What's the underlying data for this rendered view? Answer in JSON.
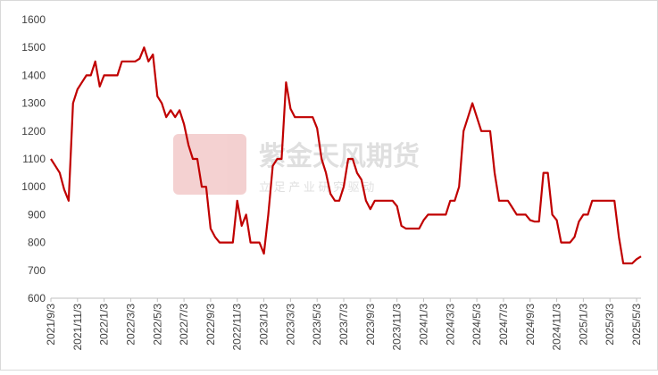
{
  "chart_data": {
    "type": "line",
    "watermark": {
      "name": "紫金天风期货",
      "slogan": "立 足 产 业 研 究 驱 动"
    },
    "categories": [
      "2021/9/3",
      null,
      null,
      null,
      null,
      null,
      "2021/11/3",
      null,
      null,
      null,
      null,
      null,
      "2022/1/3",
      null,
      null,
      null,
      null,
      null,
      "2022/3/3",
      null,
      null,
      null,
      null,
      null,
      "2022/5/3",
      null,
      null,
      null,
      null,
      null,
      "2022/7/3",
      null,
      null,
      null,
      null,
      null,
      "2022/9/3",
      null,
      null,
      null,
      null,
      null,
      "2022/11/3",
      null,
      null,
      null,
      null,
      null,
      "2023/1/3",
      null,
      null,
      null,
      null,
      null,
      "2023/3/3",
      null,
      null,
      null,
      null,
      null,
      "2023/5/3",
      null,
      null,
      null,
      null,
      null,
      "2023/7/3",
      null,
      null,
      null,
      null,
      null,
      "2023/9/3",
      null,
      null,
      null,
      null,
      null,
      "2023/11/3",
      null,
      null,
      null,
      null,
      null,
      "2024/1/3",
      null,
      null,
      null,
      null,
      null,
      "2024/3/3",
      null,
      null,
      null,
      null,
      null,
      "2024/5/3",
      null,
      null,
      null,
      null,
      null,
      "2024/7/3",
      null,
      null,
      null,
      null,
      null,
      "2024/9/3",
      null,
      null,
      null,
      null,
      null,
      "2024/11/3",
      null,
      null,
      null,
      null,
      null,
      "2025/1/3",
      null,
      null,
      null,
      null,
      null,
      "2025/3/3",
      null,
      null,
      null,
      null,
      null,
      "2025/5/3",
      null
    ],
    "series": [
      {
        "color": "#c00000",
        "values": [
          1100,
          1075,
          1050,
          990,
          950,
          1300,
          1350,
          1375,
          1400,
          1400,
          1450,
          1360,
          1400,
          1400,
          1400,
          1400,
          1450,
          1450,
          1450,
          1450,
          1460,
          1500,
          1450,
          1475,
          1325,
          1300,
          1250,
          1275,
          1250,
          1275,
          1225,
          1150,
          1100,
          1100,
          1000,
          1000,
          850,
          820,
          800,
          800,
          800,
          800,
          950,
          860,
          900,
          800,
          800,
          800,
          760,
          900,
          1075,
          1100,
          1100,
          1375,
          1280,
          1250,
          1250,
          1250,
          1250,
          1250,
          1210,
          1100,
          1050,
          975,
          950,
          950,
          1000,
          1100,
          1100,
          1050,
          1025,
          950,
          920,
          950,
          950,
          950,
          950,
          950,
          930,
          860,
          850,
          850,
          850,
          850,
          880,
          900,
          900,
          900,
          900,
          900,
          950,
          950,
          1000,
          1200,
          1250,
          1300,
          1250,
          1200,
          1200,
          1200,
          1050,
          950,
          950,
          950,
          925,
          900,
          900,
          900,
          880,
          875,
          875,
          1050,
          1050,
          900,
          880,
          800,
          800,
          800,
          820,
          875,
          900,
          900,
          950,
          950,
          950,
          950,
          950,
          950,
          820,
          725,
          725,
          725,
          740,
          750
        ]
      }
    ],
    "ylim": [
      600,
      1600
    ],
    "yticks": [
      600,
      700,
      800,
      900,
      1000,
      1100,
      1200,
      1300,
      1400,
      1500,
      1600
    ]
  }
}
